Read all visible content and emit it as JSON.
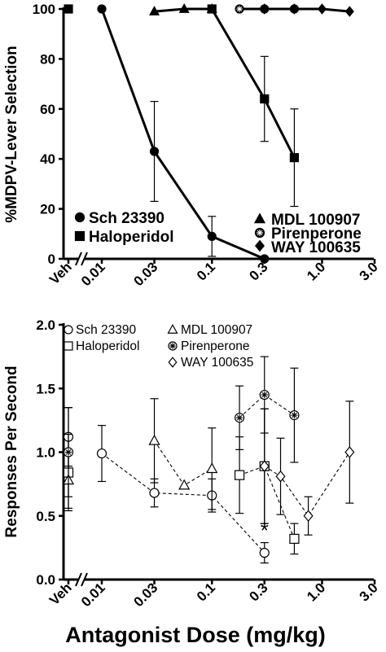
{
  "chart_data": [
    {
      "type": "line",
      "xscale": "log",
      "x_tick_labels": [
        "Veh",
        "0.01",
        "0.03",
        "0.1",
        "0.3",
        "1.0",
        "3.0"
      ],
      "x_tick_values": [
        0.01,
        0.03,
        0.1,
        0.3,
        1.0,
        3.0
      ],
      "ylabel": "%MDPV-Lever Selection",
      "ylim": [
        0,
        100
      ],
      "y_ticks": [
        0,
        20,
        40,
        60,
        80,
        100
      ],
      "legend": [
        {
          "name": "Sch 23390",
          "marker": "filled-circle"
        },
        {
          "name": "Haloperidol",
          "marker": "filled-square"
        },
        {
          "name": "MDL 100907",
          "marker": "filled-triangle"
        },
        {
          "name": "Pirenperone",
          "marker": "filled-starred-circle"
        },
        {
          "name": "WAY 100635",
          "marker": "filled-diamond"
        }
      ],
      "series": [
        {
          "name": "Sch 23390",
          "marker": "filled-circle",
          "line": "solid",
          "points": [
            [
              0.01,
              100,
              0
            ],
            [
              0.03,
              43,
              20
            ],
            [
              0.1,
              9,
              8
            ],
            [
              0.3,
              0,
              0
            ]
          ]
        },
        {
          "name": "Haloperidol",
          "marker": "filled-square",
          "line": "solid",
          "veh": 100,
          "points": [
            [
              0.1,
              100,
              0
            ],
            [
              0.3,
              64,
              17
            ],
            [
              0.56,
              40.5,
              19.5
            ]
          ]
        },
        {
          "name": "MDL 100907",
          "marker": "filled-triangle",
          "line": "solid",
          "points": [
            [
              0.03,
              99,
              0
            ],
            [
              0.056,
              100,
              0
            ],
            [
              0.1,
              100,
              0
            ]
          ]
        },
        {
          "name": "Pirenperone",
          "marker": "filled-starred-circle",
          "line": "solid",
          "points": [
            [
              0.178,
              100,
              0
            ],
            [
              0.3,
              100,
              0
            ],
            [
              0.56,
              100,
              0
            ]
          ]
        },
        {
          "name": "WAY 100635",
          "marker": "filled-diamond",
          "line": "solid",
          "points": [
            [
              0.3,
              100,
              0
            ],
            [
              0.56,
              100,
              0
            ],
            [
              1.0,
              100,
              0
            ],
            [
              1.78,
              99,
              0
            ]
          ]
        }
      ]
    },
    {
      "type": "line",
      "xscale": "log",
      "xlabel": "Antagonist Dose (mg/kg)",
      "x_tick_labels": [
        "Veh",
        "0.01",
        "0.03",
        "0.1",
        "0.3",
        "1.0",
        "3.0"
      ],
      "x_tick_values": [
        0.01,
        0.03,
        0.1,
        0.3,
        1.0,
        3.0
      ],
      "ylabel": "Responses  Per Second",
      "ylim": [
        0,
        2.0
      ],
      "y_ticks": [
        "0.0",
        "0.5",
        "1.0",
        "1.5",
        "2.0"
      ],
      "legend": [
        {
          "name": "Sch 23390",
          "marker": "open-circle"
        },
        {
          "name": "Haloperidol",
          "marker": "open-square"
        },
        {
          "name": "MDL 100907",
          "marker": "open-triangle"
        },
        {
          "name": "Pirenperone",
          "marker": "open-starred-circle"
        },
        {
          "name": "WAY 100635",
          "marker": "open-diamond"
        }
      ],
      "annotations": [
        {
          "text": "*",
          "x": 0.3
        }
      ],
      "series": [
        {
          "name": "Sch 23390",
          "marker": "open-circle",
          "line": "dashed",
          "veh": [
            1.12,
            0.23
          ],
          "points": [
            [
              0.01,
              0.99,
              0.22
            ],
            [
              0.03,
              0.68,
              0.11
            ],
            [
              0.1,
              0.66,
              0.13
            ],
            [
              0.3,
              0.21,
              0.08
            ]
          ]
        },
        {
          "name": "Haloperidol",
          "marker": "open-square",
          "line": "dashed",
          "veh": [
            0.84,
            0.3
          ],
          "points": [
            [
              0.178,
              0.82,
              0.3
            ],
            [
              0.3,
              0.89,
              0.45
            ],
            [
              0.56,
              0.32,
              0.12
            ]
          ]
        },
        {
          "name": "MDL 100907",
          "marker": "open-triangle",
          "line": "dashed",
          "veh": [
            0.78,
            0.22
          ],
          "points": [
            [
              0.03,
              1.09,
              0.33
            ],
            [
              0.056,
              0.74,
              0
            ],
            [
              0.1,
              0.87,
              0.32
            ]
          ]
        },
        {
          "name": "Pirenperone",
          "marker": "open-starred-circle",
          "line": "dashed",
          "veh": [
            1.0,
            0.35
          ],
          "points": [
            [
              0.178,
              1.27,
              0.25
            ],
            [
              0.3,
              1.45,
              0.3
            ],
            [
              0.56,
              1.29,
              0.37
            ]
          ]
        },
        {
          "name": "WAY 100635",
          "marker": "open-diamond",
          "line": "dashed",
          "points": [
            [
              0.3,
              0.89,
              0.45
            ],
            [
              0.42,
              0.81,
              0.3
            ],
            [
              0.75,
              0.5,
              0.15
            ],
            [
              1.78,
              1.0,
              0.4
            ]
          ]
        }
      ]
    }
  ]
}
